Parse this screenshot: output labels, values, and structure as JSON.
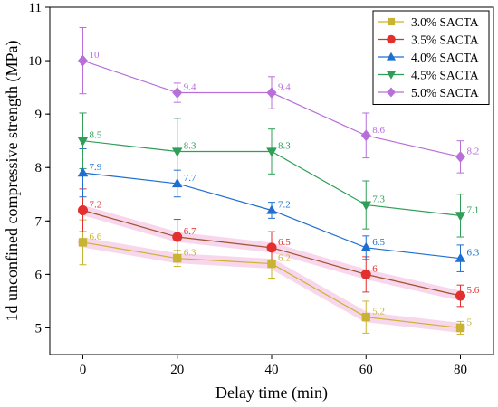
{
  "chart_data": {
    "type": "line",
    "xlabel": "Delay time (min)",
    "ylabel": "1d unconfined compressive strength (MPa)",
    "x": [
      0,
      20,
      40,
      60,
      80
    ],
    "xlim": [
      -7,
      87
    ],
    "ylim": [
      4.5,
      11
    ],
    "xticks": [
      "0",
      "20",
      "40",
      "60",
      "80"
    ],
    "yticks": [
      "5",
      "6",
      "7",
      "8",
      "9",
      "10",
      "11"
    ],
    "grid": false,
    "legend_position": "top-right",
    "series": [
      {
        "name": "3.0% SACTA",
        "color": "#c8b432",
        "marker": "square",
        "values": [
          6.6,
          6.3,
          6.2,
          5.2,
          5.0
        ],
        "labels": [
          "6.6",
          "6.3",
          "6.2",
          "5.2",
          "5"
        ],
        "errors": [
          0.42,
          0.15,
          0.27,
          0.3,
          0.12
        ]
      },
      {
        "name": "3.5% SACTA",
        "color": "#e2302e",
        "line_color": "#a0522d",
        "marker": "circle",
        "values": [
          7.2,
          6.7,
          6.5,
          6.0,
          5.6
        ],
        "labels": [
          "7.2",
          "6.7",
          "6.5",
          "6",
          "5.6"
        ],
        "errors": [
          0.4,
          0.33,
          0.3,
          0.33,
          0.2
        ]
      },
      {
        "name": "4.0% SACTA",
        "color": "#1f6fd1",
        "marker": "triangle-up",
        "values": [
          7.9,
          7.7,
          7.2,
          6.5,
          6.3
        ],
        "labels": [
          "7.9",
          "7.7",
          "7.2",
          "6.5",
          "6.3"
        ],
        "errors": [
          0.45,
          0.25,
          0.15,
          0.22,
          0.25
        ]
      },
      {
        "name": "4.5% SACTA",
        "color": "#2f9e57",
        "marker": "triangle-down",
        "values": [
          8.5,
          8.3,
          8.3,
          7.3,
          7.1
        ],
        "labels": [
          "8.5",
          "8.3",
          "8.3",
          "7.3",
          "7.1"
        ],
        "errors": [
          0.52,
          0.62,
          0.42,
          0.45,
          0.4
        ]
      },
      {
        "name": "5.0% SACTA",
        "color": "#b86fd9",
        "marker": "diamond",
        "values": [
          10.0,
          9.4,
          9.4,
          8.6,
          8.2
        ],
        "labels": [
          "10",
          "9.4",
          "9.4",
          "8.6",
          "8.2"
        ],
        "errors": [
          0.62,
          0.18,
          0.3,
          0.42,
          0.3
        ]
      }
    ]
  }
}
